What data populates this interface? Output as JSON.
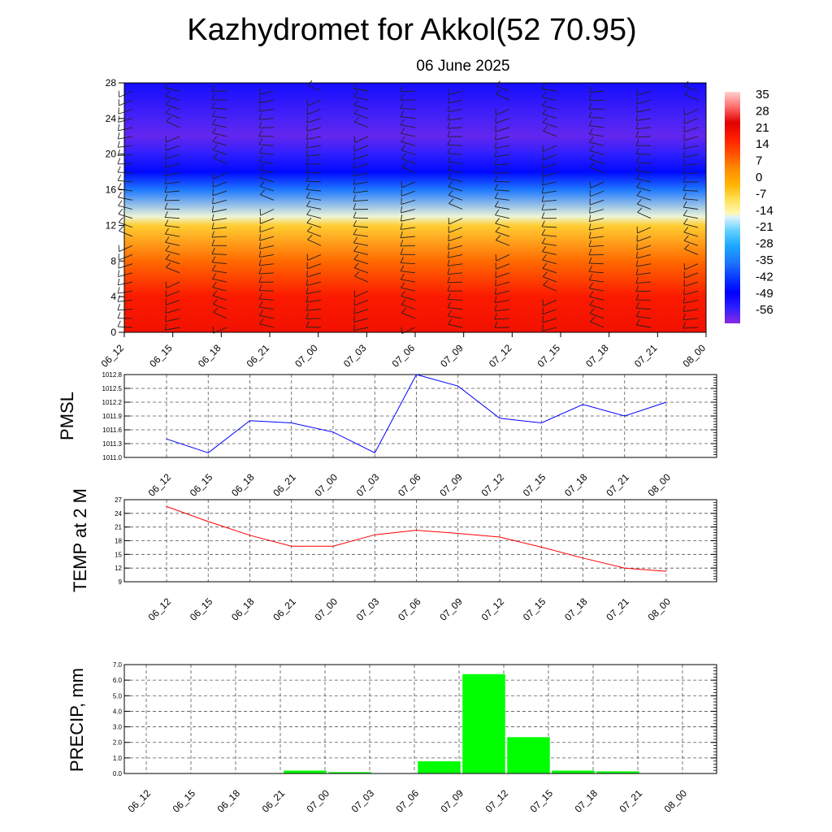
{
  "title": "Kazhydromet for Akkol(52 70.95)",
  "subtitle": "06 June 2025",
  "time_labels": [
    "06_12",
    "06_15",
    "06_18",
    "06_21",
    "07_00",
    "07_03",
    "07_06",
    "07_09",
    "07_12",
    "07_15",
    "07_18",
    "07_21",
    "08_00"
  ],
  "colorbar": {
    "labels": [
      "35",
      "28",
      "21",
      "14",
      "7",
      "0",
      "-7",
      "-14",
      "-21",
      "-28",
      "-35",
      "-42",
      "-49",
      "-56"
    ]
  },
  "chart_data": [
    {
      "type": "heatmap",
      "ylim": [
        0,
        28
      ],
      "yticks": [
        "0",
        "4",
        "8",
        "12",
        "16",
        "20",
        "24",
        "28"
      ],
      "colorbar_range": [
        -63,
        42
      ],
      "temperature_profile": {
        "levels": [
          0,
          4,
          8,
          12,
          13,
          16,
          18,
          20,
          22,
          24,
          28
        ],
        "values": [
          24,
          22,
          11,
          -4,
          -14,
          -35,
          -48,
          -56,
          -60,
          -58,
          -52
        ]
      }
    },
    {
      "type": "line",
      "ylabel": "PMSL",
      "ylim": [
        1011.0,
        1012.8
      ],
      "yticks": [
        "1011.0",
        "1011.3",
        "1011.6",
        "1011.9",
        "1012.2",
        "1012.5",
        "1012.8"
      ],
      "series": [
        {
          "color": "#0000ff",
          "values": [
            1011.4,
            1011.1,
            1011.8,
            1011.75,
            1011.55,
            1011.1,
            1012.8,
            1012.55,
            1011.85,
            1011.75,
            1012.15,
            1011.9,
            1012.2
          ]
        }
      ]
    },
    {
      "type": "line",
      "ylabel": "TEMP at 2 M",
      "ylim": [
        9,
        27
      ],
      "yticks": [
        "9",
        "12",
        "15",
        "18",
        "21",
        "24",
        "27"
      ],
      "series": [
        {
          "color": "#ff0000",
          "values": [
            25.5,
            22.2,
            19.2,
            16.8,
            16.8,
            19.3,
            20.3,
            19.6,
            18.8,
            16.6,
            14.2,
            12.0,
            11.3
          ]
        }
      ]
    },
    {
      "type": "bar",
      "ylabel": "PRECIP, mm",
      "ylim": [
        0,
        7
      ],
      "yticks": [
        "0.0",
        "1.0",
        "2.0",
        "3.0",
        "4.0",
        "5.0",
        "6.0",
        "7.0"
      ],
      "color": "#00ff00",
      "values": [
        0,
        0,
        0,
        0.2,
        0.1,
        0,
        0.8,
        6.4,
        2.35,
        0.2,
        0.15,
        0,
        0.02
      ]
    }
  ]
}
